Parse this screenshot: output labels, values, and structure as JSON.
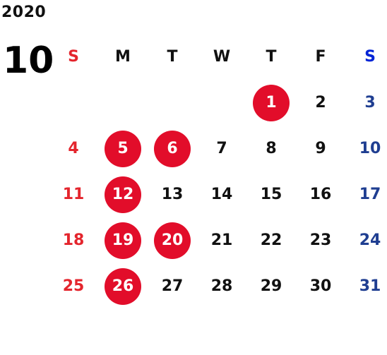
{
  "year": "2020",
  "month": "10",
  "weekdays": [
    "S",
    "M",
    "T",
    "W",
    "T",
    "F",
    "S"
  ],
  "weeks": [
    [
      "",
      "",
      "",
      "",
      "1",
      "2",
      "3"
    ],
    [
      "4",
      "5",
      "6",
      "7",
      "8",
      "9",
      "10"
    ],
    [
      "11",
      "12",
      "13",
      "14",
      "15",
      "16",
      "17"
    ],
    [
      "18",
      "19",
      "20",
      "21",
      "22",
      "23",
      "24"
    ],
    [
      "25",
      "26",
      "27",
      "28",
      "29",
      "30",
      "31"
    ]
  ],
  "holidays": [
    "1",
    "5",
    "6",
    "12",
    "19",
    "20",
    "26"
  ],
  "colors": {
    "sunday": "#e4252d",
    "saturday": "#1f3e91",
    "saturday_header": "#0024d6",
    "holiday_circle": "#e20d2a",
    "weekday": "#111111"
  }
}
